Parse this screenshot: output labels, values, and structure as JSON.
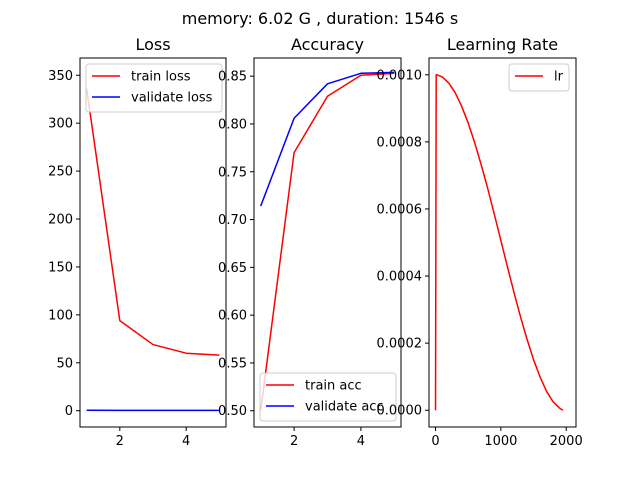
{
  "figure": {
    "suptitle": "memory: 6.02 G , duration: 1546 s"
  },
  "chart_data": [
    {
      "id": "loss",
      "type": "line",
      "title": "Loss",
      "xlabel": "",
      "ylabel": "",
      "xlim": [
        0.8,
        5.2
      ],
      "ylim": [
        -17,
        368
      ],
      "xticks": [
        2,
        4
      ],
      "xtick_labels": [
        "2",
        "4"
      ],
      "yticks": [
        0,
        50,
        100,
        150,
        200,
        250,
        300,
        350
      ],
      "ytick_labels": [
        "0",
        "50",
        "100",
        "150",
        "200",
        "250",
        "300",
        "350"
      ],
      "grid": false,
      "legend_position": "upper-right",
      "series": [
        {
          "name": "train loss",
          "color": "#ff0000",
          "x": [
            1,
            2,
            3,
            4,
            5
          ],
          "values": [
            336,
            94,
            69,
            60,
            58
          ]
        },
        {
          "name": "validate loss",
          "color": "#0000ff",
          "x": [
            1,
            2,
            3,
            4,
            5
          ],
          "values": [
            0.5,
            0.4,
            0.3,
            0.3,
            0.3
          ]
        }
      ]
    },
    {
      "id": "accuracy",
      "type": "line",
      "title": "Accuracy",
      "xlabel": "",
      "ylabel": "",
      "xlim": [
        0.8,
        5.2
      ],
      "ylim": [
        0.483,
        0.869
      ],
      "xticks": [
        2,
        4
      ],
      "xtick_labels": [
        "2",
        "4"
      ],
      "yticks": [
        0.5,
        0.55,
        0.6,
        0.65,
        0.7,
        0.75,
        0.8,
        0.85
      ],
      "ytick_labels": [
        "0.50",
        "0.55",
        "0.60",
        "0.65",
        "0.70",
        "0.75",
        "0.80",
        "0.85"
      ],
      "grid": false,
      "legend_position": "lower-right",
      "series": [
        {
          "name": "train acc",
          "color": "#ff0000",
          "x": [
            1,
            2,
            3,
            4,
            5
          ],
          "values": [
            0.5,
            0.77,
            0.829,
            0.851,
            0.853
          ]
        },
        {
          "name": "validate acc",
          "color": "#0000ff",
          "x": [
            1,
            2,
            3,
            4,
            5
          ],
          "values": [
            0.714,
            0.806,
            0.842,
            0.853,
            0.854
          ]
        }
      ]
    },
    {
      "id": "lr",
      "type": "line",
      "title": "Learning Rate",
      "xlabel": "",
      "ylabel": "",
      "xlim": [
        -100,
        2150
      ],
      "ylim": [
        -5e-05,
        0.00105
      ],
      "xticks": [
        0,
        1000,
        2000
      ],
      "xtick_labels": [
        "0",
        "1000",
        "2000"
      ],
      "yticks": [
        0.0,
        0.0002,
        0.0004,
        0.0006,
        0.0008,
        0.001
      ],
      "ytick_labels": [
        "0.0000",
        "0.0002",
        "0.0004",
        "0.0006",
        "0.0008",
        "0.0010"
      ],
      "grid": false,
      "legend_position": "upper-right",
      "series": [
        {
          "name": "lr",
          "color": "#ff0000",
          "x": [
            0,
            10,
            20,
            100,
            200,
            300,
            400,
            500,
            600,
            700,
            800,
            900,
            1000,
            1100,
            1200,
            1300,
            1400,
            1500,
            1600,
            1700,
            1800,
            1900,
            1950
          ],
          "values": [
            0.0,
            0.001,
            0.001,
            0.000994,
            0.000976,
            0.000947,
            0.000906,
            0.000856,
            0.000797,
            0.000731,
            0.00066,
            0.000584,
            0.000506,
            0.000428,
            0.000352,
            0.000279,
            0.000212,
            0.000151,
            9.9e-05,
            5.6e-05,
            2.5e-05,
            6e-06,
            0.0
          ]
        }
      ]
    }
  ]
}
